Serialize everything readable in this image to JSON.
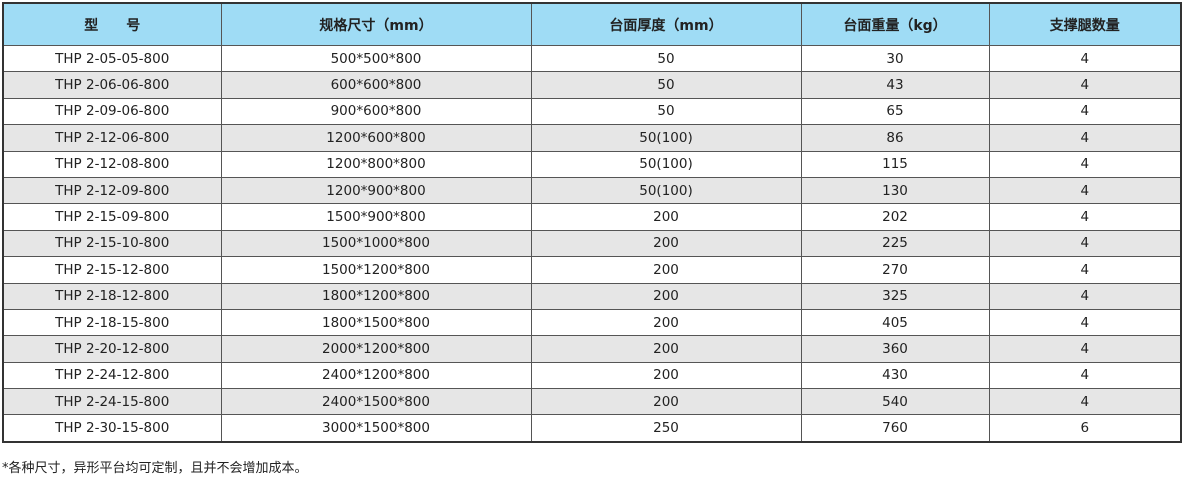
{
  "header": [
    "型　　号",
    "规格尺寸（mm）",
    "台面厚度（mm）",
    "台面重量（kg）",
    "支撑腿数量"
  ],
  "rows": [
    [
      "THP 2-05-05-800",
      "500*500*800",
      "50",
      "30",
      "4"
    ],
    [
      "THP 2-06-06-800",
      "600*600*800",
      "50",
      "43",
      "4"
    ],
    [
      "THP 2-09-06-800",
      "900*600*800",
      "50",
      "65",
      "4"
    ],
    [
      "THP 2-12-06-800",
      "1200*600*800",
      "50(100)",
      "86",
      "4"
    ],
    [
      "THP 2-12-08-800",
      "1200*800*800",
      "50(100)",
      "115",
      "4"
    ],
    [
      "THP 2-12-09-800",
      "1200*900*800",
      "50(100)",
      "130",
      "4"
    ],
    [
      "THP 2-15-09-800",
      "1500*900*800",
      "200",
      "202",
      "4"
    ],
    [
      "THP 2-15-10-800",
      "1500*1000*800",
      "200",
      "225",
      "4"
    ],
    [
      "THP 2-15-12-800",
      "1500*1200*800",
      "200",
      "270",
      "4"
    ],
    [
      "THP 2-18-12-800",
      "1800*1200*800",
      "200",
      "325",
      "4"
    ],
    [
      "THP 2-18-15-800",
      "1800*1500*800",
      "200",
      "405",
      "4"
    ],
    [
      "THP 2-20-12-800",
      "2000*1200*800",
      "200",
      "360",
      "4"
    ],
    [
      "THP 2-24-12-800",
      "2400*1200*800",
      "200",
      "430",
      "4"
    ],
    [
      "THP 2-24-15-800",
      "2400*1500*800",
      "200",
      "540",
      "4"
    ],
    [
      "THP 2-30-15-800",
      "3000*1500*800",
      "250",
      "760",
      "6"
    ]
  ],
  "note": "*各种尺寸，异形平台均可定制，且并不会增加成本。",
  "colors": {
    "header_bg": "#9fdcf5",
    "alt_row_bg": "#e6e6e6"
  }
}
